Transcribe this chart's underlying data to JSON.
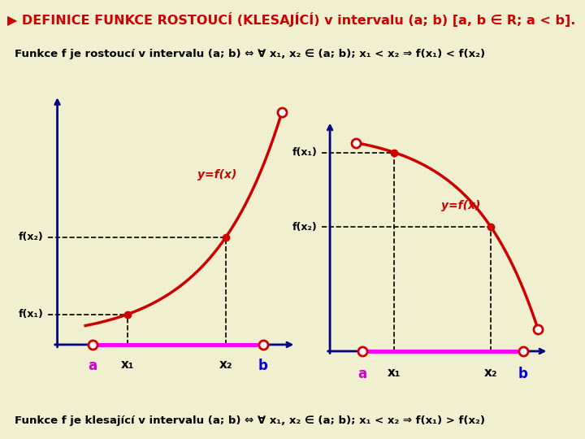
{
  "title": "▶ DEFINICE FUNKCE ROSTOUCÍ (KLESAJÍCÍ) v intervalu (a; b) [a, b ∈ R; a < b].",
  "title_color": "#cc0000",
  "title_fontsize": 11.5,
  "bg_color": "#f0f0d0",
  "box_bg": "#ffffcc",
  "box_border": "#cc8800",
  "text1": "Funkce f je rostoucí v intervalu (a; b) ⇔ ∀ x₁, x₂ ∈ (a; b); x₁ < x₂ ⇒ f(x₁) < f(x₂)",
  "text2": "Funkce f je klesající v intervalu (a; b) ⇔ ∀ x₁, x₂ ∈ (a; b); x₁ < x₂ ⇒ f(x₁) > f(x₂)",
  "text_color": "#000000",
  "curve_color": "#cc0000",
  "dashed_color": "#000000",
  "open_circle_color": "#cc0000",
  "magenta_color": "#ff00ff",
  "axis_color": "#000080",
  "label_a_color": "#cc00cc",
  "label_b_color": "#0000dd",
  "label_x_color": "#000000"
}
